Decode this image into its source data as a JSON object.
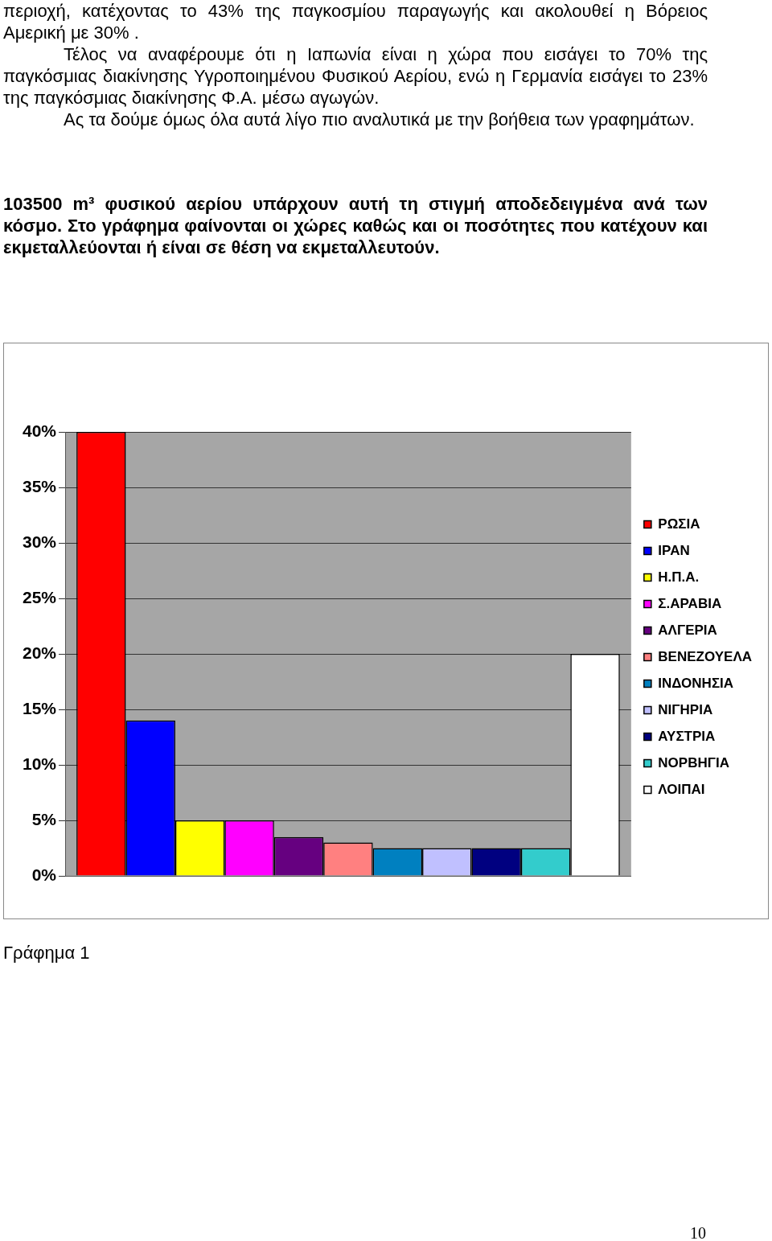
{
  "chart_data": {
    "type": "bar",
    "title": "103500 m³ φυσικού αερίου υπάρχουν αυτή τη στιγμή αποδεδειγμένα ανά των κόσμο. Στο γράφημα φαίνονται οι χώρες καθώς και οι ποσότητες που κατέχουν και εκμεταλλεύονται ή είναι σε θέση να εκμεταλλευτούν.",
    "annotations": [
      "περιοχή, κατέχοντας το 43% της παγκοσμίου παραγωγής και ακολουθεί η Βόρειος Αμερική με 30% .",
      "Τέλος να αναφέρουμε ότι η Ιαπωνία είναι η χώρα που εισάγει το 70% της παγκόσμιας διακίνησης Υγροποιημένου Φυσικού Αερίου, ενώ η Γερμανία εισάγει το 23% της παγκόσμιας διακίνησης Φ.Α. μέσω αγωγών.",
      "Ας τα δούμε όμως όλα αυτά λίγο πιο αναλυτικά με την βοήθεια των γραφημάτων.",
      "Γράφημα 1",
      "10"
    ],
    "categories": [
      null
    ],
    "series": [
      {
        "name": "ΡΩΣΙΑ",
        "color": "#ff0000",
        "values": [
          40
        ]
      },
      {
        "name": "ΙΡΑΝ",
        "color": "#0000ff",
        "values": [
          14
        ]
      },
      {
        "name": "Η.Π.Α.",
        "color": "#ffff00",
        "values": [
          5
        ]
      },
      {
        "name": "Σ.ΑΡΑΒΙΑ",
        "color": "#ff00ff",
        "values": [
          5
        ]
      },
      {
        "name": "ΑΛΓΕΡΙΑ",
        "color": "#660080",
        "values": [
          3.5
        ]
      },
      {
        "name": "ΒΕΝΕΖΟΥΕΛΑ",
        "color": "#ff8080",
        "values": [
          3
        ]
      },
      {
        "name": "ΙΝΔΟΝΗΣΙΑ",
        "color": "#0080c0",
        "values": [
          2.5
        ]
      },
      {
        "name": "ΝΙΓΗΡΙΑ",
        "color": "#c0c0ff",
        "values": [
          2.5
        ]
      },
      {
        "name": "ΑΥΣΤΡΙΑ",
        "color": "#000080",
        "values": [
          2.5
        ]
      },
      {
        "name": "ΝΟΡΒΗΓΙΑ",
        "color": "#33cccc",
        "values": [
          2.5
        ]
      },
      {
        "name": "ΛΟΙΠΑΙ",
        "color": "#ffffff",
        "values": [
          20
        ]
      }
    ],
    "ylim": [
      0,
      40
    ],
    "yticks": [
      {
        "value": 0,
        "label": "0%"
      },
      {
        "value": 5,
        "label": "5%"
      },
      {
        "value": 10,
        "label": "10%"
      },
      {
        "value": 15,
        "label": "15%"
      },
      {
        "value": 20,
        "label": "20%"
      },
      {
        "value": 25,
        "label": "25%"
      },
      {
        "value": 30,
        "label": "30%"
      },
      {
        "value": 35,
        "label": "35%"
      },
      {
        "value": 40,
        "label": "40%"
      }
    ],
    "grid": "y",
    "legend": "right"
  }
}
